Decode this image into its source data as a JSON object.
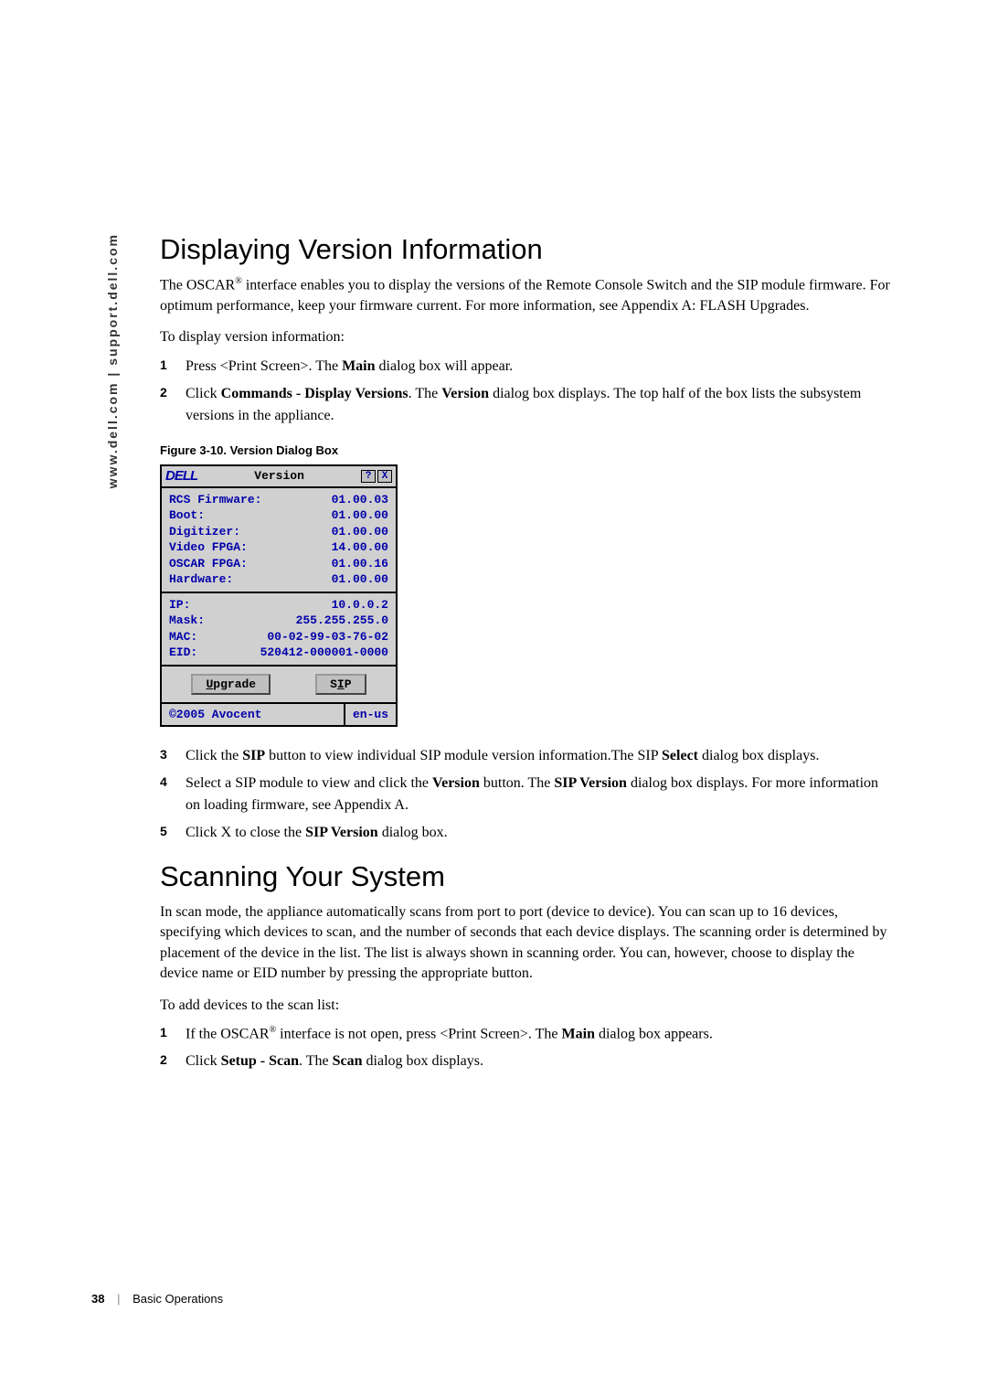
{
  "sidebar": "www.dell.com | support.dell.com",
  "heading1": "Displaying Version Information",
  "p1a": "The OSCAR",
  "p1b": " interface enables you to display the versions of the Remote Console Switch and the SIP module firmware. For optimum performance, keep your firmware current. For more information, see Appendix A: FLASH Upgrades.",
  "p2": "To display version information:",
  "l1_1a": "Press <Print Screen>. The ",
  "l1_1b": "Main",
  "l1_1c": " dialog box will appear.",
  "l1_2a": "Click ",
  "l1_2b": "Commands - Display Versions",
  "l1_2c": ". The ",
  "l1_2d": "Version",
  "l1_2e": " dialog box displays. The top half of the box lists the subsystem versions in the appliance.",
  "figcap": "Figure 3-10.    Version Dialog Box",
  "dialog": {
    "logo": "DELL",
    "title": "Version",
    "help": "?",
    "close": "X",
    "sec1": [
      {
        "k": "RCS Firmware:",
        "v": "01.00.03"
      },
      {
        "k": "Boot:",
        "v": "01.00.00"
      },
      {
        "k": "Digitizer:",
        "v": "01.00.00"
      },
      {
        "k": "Video FPGA:",
        "v": "14.00.00"
      },
      {
        "k": "OSCAR FPGA:",
        "v": "01.00.16"
      },
      {
        "k": "Hardware:",
        "v": "01.00.00"
      }
    ],
    "sec2": [
      {
        "k": "IP:",
        "v": "10.0.0.2"
      },
      {
        "k": "Mask:",
        "v": "255.255.255.0"
      },
      {
        "k": "MAC:",
        "v": "00-02-99-03-76-02"
      },
      {
        "k": "EID:",
        "v": "520412-000001-0000"
      }
    ],
    "btn1_u": "U",
    "btn1_rest": "pgrade",
    "btn2_pre": "S",
    "btn2_u": "I",
    "btn2_post": "P",
    "copyright": "©2005 Avocent",
    "lang": "en-us"
  },
  "l2_3a": "Click the ",
  "l2_3b": "SIP",
  "l2_3c": " button to view individual SIP module version information.The SIP ",
  "l2_3d": "Select",
  "l2_3e": " dialog box displays.",
  "l2_4a": "Select a SIP module to view and click the ",
  "l2_4b": "Version",
  "l2_4c": " button. The ",
  "l2_4d": "SIP Version",
  "l2_4e": " dialog box displays. For more information on loading firmware, see Appendix A.",
  "l2_5a": "Click X to close the ",
  "l2_5b": "SIP Version",
  "l2_5c": " dialog box.",
  "heading2": "Scanning Your System",
  "p3": "In scan mode, the appliance automatically scans from port to port (device to device). You can scan up to 16 devices, specifying which devices to scan, and the number of seconds that each device displays. The scanning order is determined by placement of the device in the list. The list is always shown in scanning order. You can, however, choose to display the device name or EID number by pressing the appropriate button.",
  "p4": "To add devices to the scan list:",
  "l3_1a": "If the OSCAR",
  "l3_1b": " interface is not open, press <Print Screen>. The ",
  "l3_1c": "Main",
  "l3_1d": " dialog box appears.",
  "l3_2a": "Click ",
  "l3_2b": "Setup - Scan",
  "l3_2c": ". The ",
  "l3_2d": "Scan",
  "l3_2e": " dialog box displays.",
  "footer": {
    "page": "38",
    "section": "Basic Operations"
  }
}
